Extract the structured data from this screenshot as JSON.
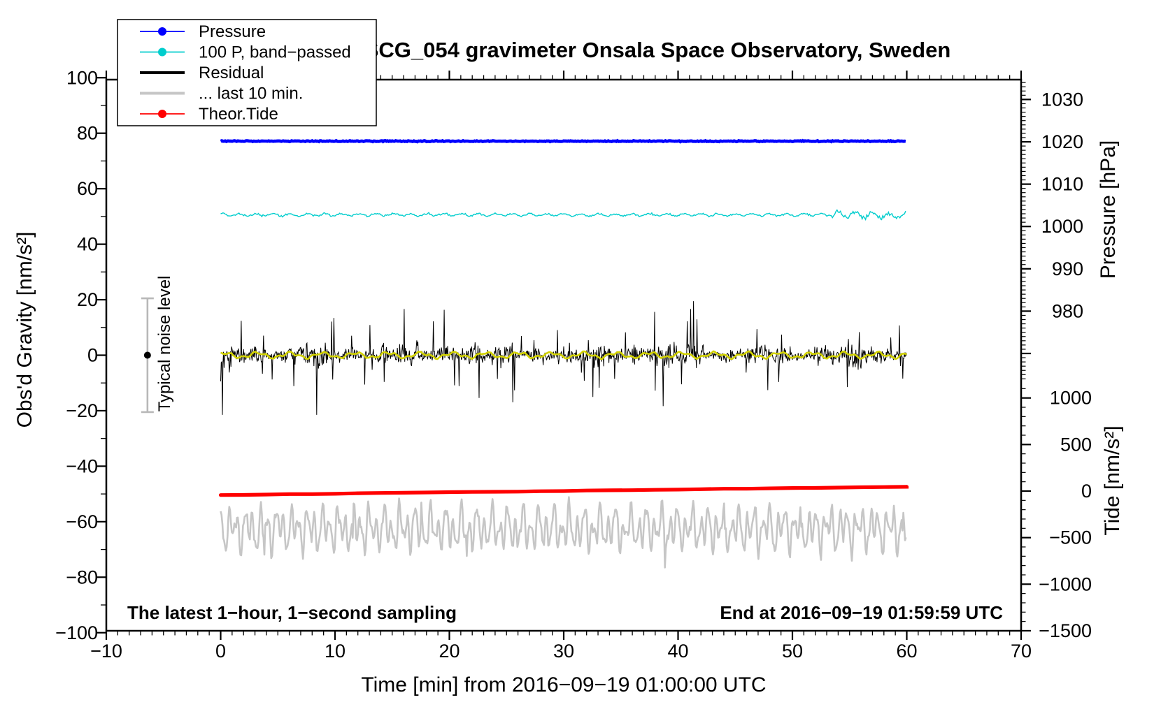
{
  "chart_data": {
    "type": "line",
    "title": "SCG_054 gravimeter Onsala Space Observatory, Sweden",
    "xlabel": "Time [min] from 2016−09−19 01:00:00 UTC",
    "ylabel_left": "Obs'd Gravity [nm/s²]",
    "ylabel_right_top": "Pressure [hPa]",
    "ylabel_right_bottom": "Tide [nm/s²]",
    "annotations": {
      "sampling_note": "The latest 1−hour, 1−second sampling",
      "end_time": "End at 2016−09−19 01:59:59 UTC",
      "noise_label": "Typical noise level"
    },
    "axes": {
      "x": {
        "min": -10,
        "max": 70,
        "major_step": 10,
        "minor_step": 1,
        "ticks": [
          {
            "v": -10,
            "t": "−10"
          },
          {
            "v": 0,
            "t": "0"
          },
          {
            "v": 10,
            "t": "10"
          },
          {
            "v": 20,
            "t": "20"
          },
          {
            "v": 30,
            "t": "30"
          },
          {
            "v": 40,
            "t": "40"
          },
          {
            "v": 50,
            "t": "50"
          },
          {
            "v": 60,
            "t": "60"
          },
          {
            "v": 70,
            "t": "70"
          }
        ]
      },
      "gravity": {
        "min": -100,
        "max": 100,
        "major_step": 20,
        "minor_step": 10,
        "ticks": [
          {
            "v": 100,
            "t": "100"
          },
          {
            "v": 80,
            "t": "80"
          },
          {
            "v": 60,
            "t": "60"
          },
          {
            "v": 40,
            "t": "40"
          },
          {
            "v": 20,
            "t": "20"
          },
          {
            "v": 0,
            "t": "0"
          },
          {
            "v": -20,
            "t": "−20"
          },
          {
            "v": -40,
            "t": "−40"
          },
          {
            "v": -60,
            "t": "−60"
          },
          {
            "v": -80,
            "t": "−80"
          },
          {
            "v": -100,
            "t": "−100"
          }
        ]
      },
      "pressure": {
        "minor_step": 1,
        "minor_min": 964,
        "minor_max": 1034,
        "ticks": [
          {
            "v": 1030,
            "t": "1030"
          },
          {
            "v": 1020,
            "t": "1020"
          },
          {
            "v": 1010,
            "t": "1010"
          },
          {
            "v": 1000,
            "t": "1000"
          },
          {
            "v": 990,
            "t": "990"
          },
          {
            "v": 980,
            "t": "980"
          }
        ]
      },
      "tide": {
        "minor_step": 100,
        "minor_min": -1500,
        "minor_max": 1100,
        "ticks": [
          {
            "v": 1000,
            "t": "1000"
          },
          {
            "v": 500,
            "t": "500"
          },
          {
            "v": 0,
            "t": "0"
          },
          {
            "v": -500,
            "t": "−500"
          },
          {
            "v": -1000,
            "t": "−1000"
          },
          {
            "v": -1500,
            "t": "−1500"
          }
        ]
      }
    },
    "legend": [
      {
        "label": "Pressure",
        "color": "#0000ff",
        "marker": true,
        "sample_width": 1.8
      },
      {
        "label": "100 P, band−passed",
        "color": "#00cdcd",
        "marker": true,
        "sample_width": 1.8
      },
      {
        "label": "Residual",
        "color": "#000000",
        "marker": false,
        "sample_width": 4
      },
      {
        "label": "... last 10 min.",
        "color": "#c6c6c6",
        "marker": false,
        "sample_width": 4
      },
      {
        "label": "Theor.Tide",
        "color": "#ff0000",
        "marker": true,
        "sample_width": 1.8
      }
    ],
    "series": [
      {
        "id": "last10-residual",
        "name": "... last 10 min.",
        "axis": "gravity",
        "color": "#c6c6c6",
        "width": 2.6,
        "t_start": 0,
        "t_end": 60,
        "mean": -62.5,
        "amp": 8,
        "min": -79.5,
        "max": -49.5
      },
      {
        "id": "theoretical-tide",
        "name": "Theor.Tide",
        "axis": "gravity",
        "color": "#ff0000",
        "width": 5.2,
        "t_start": 0,
        "t_end": 60,
        "start_value": -50.4,
        "end_value": -47.4,
        "tide_axis_start": -38,
        "tide_axis_end": 45
      },
      {
        "id": "residual",
        "name": "Residual",
        "axis": "gravity",
        "color": "#000000",
        "width": 1,
        "t_start": 0,
        "t_end": 60,
        "mean": 0,
        "std": 3.1,
        "spike_prob": 0.055,
        "spike_max": 16,
        "clip": 21.5
      },
      {
        "id": "residual-smoothed",
        "name": "Residual smoothed",
        "axis": "gravity",
        "color": "#d2d200",
        "width": 2.6,
        "t_start": 0,
        "t_end": 60,
        "mean": 0,
        "amp": 1.4
      },
      {
        "id": "pressure",
        "name": "Pressure",
        "axis": "pressure",
        "color": "#0000ff",
        "width": 4.6,
        "t_start": 0,
        "t_end": 60,
        "mean_hpa": 1020.15,
        "noise_hpa": 0.1
      },
      {
        "id": "pressure-bandpassed",
        "name": "100 P, band−passed",
        "axis": "gravity",
        "color": "#00cdcd",
        "width": 1.4,
        "t_start": 0,
        "t_end": 60,
        "mean": 50.6,
        "noise": 0.45,
        "end_boost_after": 53.5,
        "end_boost": 2.4
      }
    ],
    "noise_marker": {
      "t": -6.4,
      "value": 0,
      "error": 20.5,
      "bar_color": "#b8b8b8",
      "dot_color": "#000000"
    }
  }
}
